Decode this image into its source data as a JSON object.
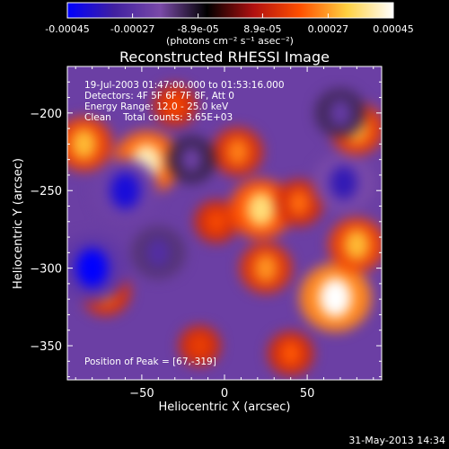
{
  "chart_data": {
    "type": "heatmap",
    "title": "Reconstructed RHESSI Image",
    "xlabel": "Heliocentric X (arcsec)",
    "ylabel": "Heliocentric Y (arcsec)",
    "xlim": [
      -95,
      95
    ],
    "ylim": [
      -372,
      -170
    ],
    "x_ticks": [
      -50,
      0,
      50
    ],
    "y_ticks": [
      -200,
      -250,
      -300,
      -350
    ],
    "colorbar": {
      "range": [
        -0.00045,
        0.00045
      ],
      "ticks": [
        "-0.00045",
        "-0.00027",
        "-8.9e-05",
        "8.9e-05",
        "0.00027",
        "0.00045"
      ],
      "tick_values": [
        -0.00045,
        -0.00027,
        -8.9e-05,
        8.9e-05,
        0.00027,
        0.00045
      ],
      "units": "(photons cm⁻² s⁻¹ asec⁻²)",
      "colors": [
        "#0000ff",
        "#4020a0",
        "#7a4aa8",
        "#000000",
        "#b01010",
        "#ff5000",
        "#ffd040",
        "#ffffff"
      ]
    },
    "annotations": {
      "time_range": "19-Jul-2003 01:47:00.000 to 01:53:16.000",
      "detectors": "Detectors: 4F 5F 6F 7F 8F, Att 0",
      "energy_range": "Energy Range: 12.0 - 25.0 keV",
      "clean_counts": "Clean    Total counts: 3.65E+03",
      "peak": "Position of Peak = [67,-319]"
    },
    "sources": [
      {
        "x": -47,
        "y": -232,
        "value": 0.0004
      },
      {
        "x": -85,
        "y": -220,
        "value": 0.0003
      },
      {
        "x": -72,
        "y": -315,
        "value": 0.00024
      },
      {
        "x": -5,
        "y": -270,
        "value": 0.00018
      },
      {
        "x": 8,
        "y": -225,
        "value": 0.00024
      },
      {
        "x": 22,
        "y": -262,
        "value": 0.00036
      },
      {
        "x": 45,
        "y": -258,
        "value": 0.00022
      },
      {
        "x": 67,
        "y": -319,
        "value": 0.00045
      },
      {
        "x": 80,
        "y": -210,
        "value": 0.00028
      },
      {
        "x": 80,
        "y": -285,
        "value": 0.0003
      },
      {
        "x": 40,
        "y": -355,
        "value": 0.0002
      },
      {
        "x": -15,
        "y": -350,
        "value": 0.00016
      },
      {
        "x": 25,
        "y": -300,
        "value": 0.00026
      },
      {
        "x": -30,
        "y": -195,
        "value": 0.00018
      },
      {
        "x": -60,
        "y": -250,
        "value": -0.0004
      },
      {
        "x": -80,
        "y": -300,
        "value": -0.00045
      },
      {
        "x": 72,
        "y": -245,
        "value": -0.00035
      },
      {
        "x": -40,
        "y": -290,
        "value": -0.00028
      },
      {
        "x": -20,
        "y": -230,
        "value": -0.00022
      },
      {
        "x": 70,
        "y": -200,
        "value": -0.00024
      }
    ]
  },
  "footer": {
    "date": "31-May-2013 14:34"
  }
}
